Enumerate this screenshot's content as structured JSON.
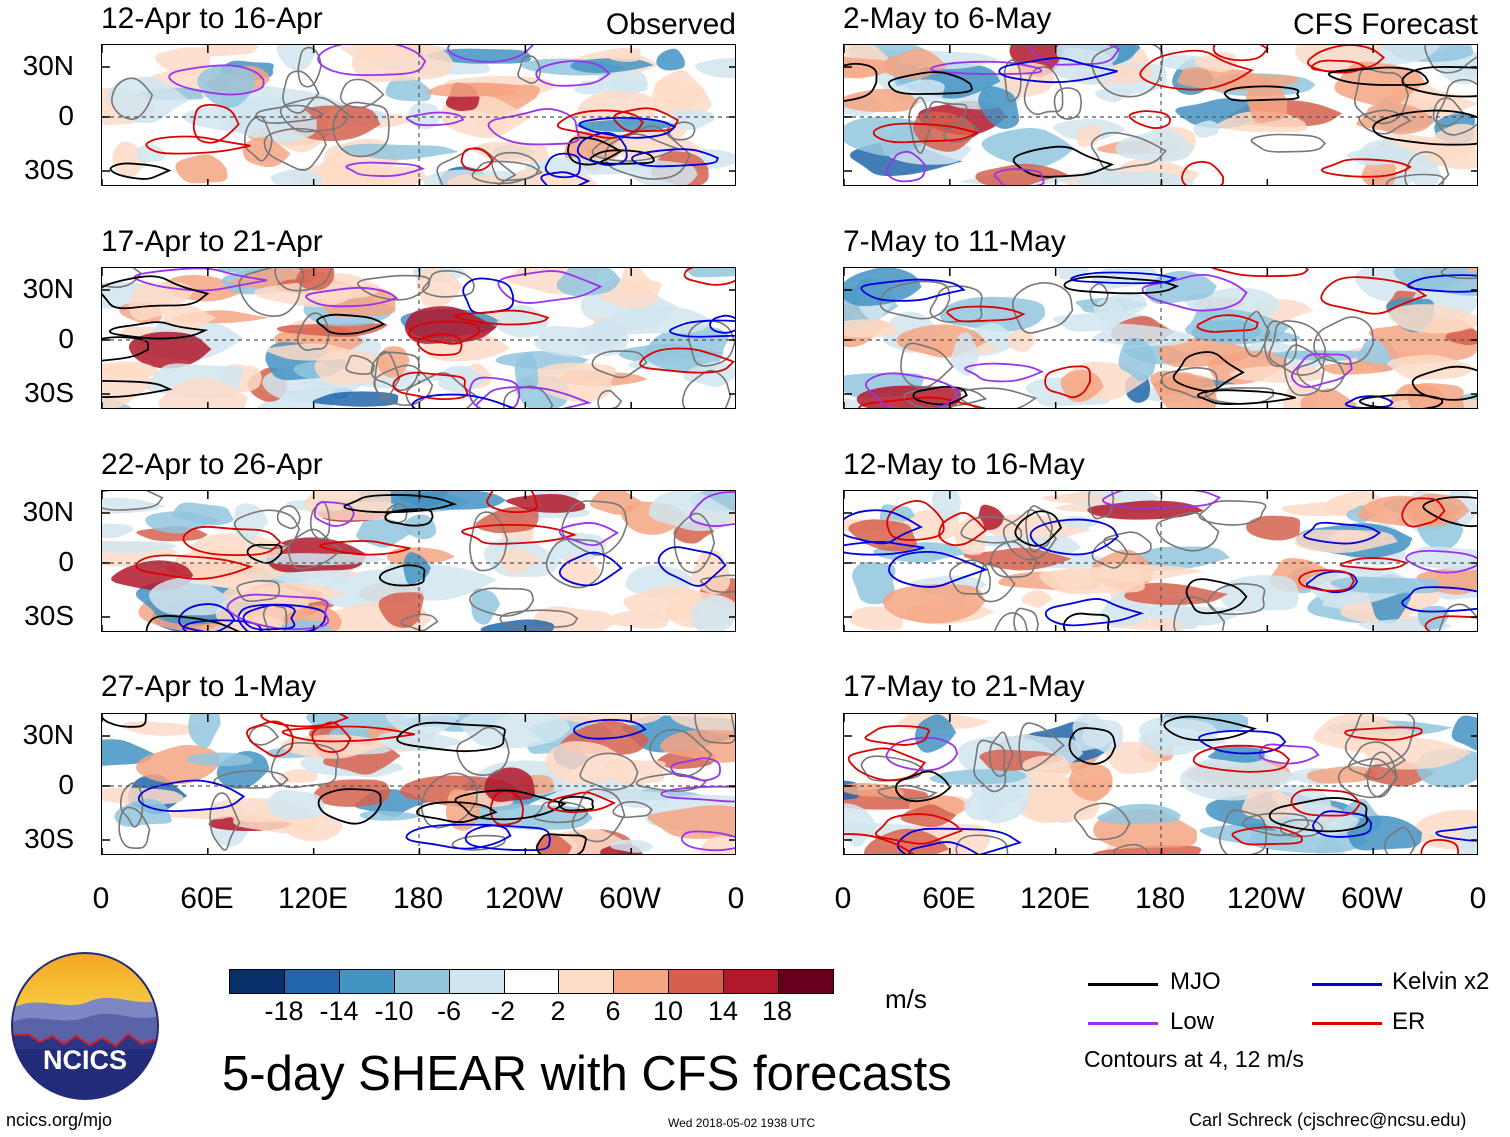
{
  "panels_left": [
    {
      "title": "12-Apr to 16-Apr",
      "tag": "Observed"
    },
    {
      "title": "17-Apr to 21-Apr",
      "tag": ""
    },
    {
      "title": "22-Apr to 26-Apr",
      "tag": ""
    },
    {
      "title": "27-Apr to 1-May",
      "tag": ""
    }
  ],
  "panels_right": [
    {
      "title": "2-May to 6-May",
      "tag": "CFS Forecast"
    },
    {
      "title": "7-May to 11-May",
      "tag": ""
    },
    {
      "title": "12-May to 16-May",
      "tag": ""
    },
    {
      "title": "17-May to 21-May",
      "tag": ""
    }
  ],
  "lat_labels": [
    "30N",
    "0",
    "30S"
  ],
  "lon_labels": [
    "0",
    "60E",
    "120E",
    "180",
    "120W",
    "60W",
    "0"
  ],
  "colorbar": {
    "colors": [
      "#08306b",
      "#2166ac",
      "#4393c3",
      "#92c5de",
      "#d1e5f0",
      "#ffffff",
      "#fddbc7",
      "#f4a582",
      "#d6604d",
      "#b2182b",
      "#67001f"
    ],
    "labels": [
      "-18",
      "-14",
      "-10",
      "-6",
      "-2",
      "2",
      "6",
      "10",
      "14",
      "18"
    ],
    "units": "m/s"
  },
  "title": "5-day SHEAR with CFS forecasts",
  "legend": [
    {
      "label": "MJO",
      "color": "#000000"
    },
    {
      "label": "Kelvin x2",
      "color": "#0000dd"
    },
    {
      "label": "Low",
      "color": "#9933ee"
    },
    {
      "label": "ER",
      "color": "#dd0000"
    }
  ],
  "contour_note": "Contours at 4, 12 m/s",
  "logo_text": "NCICS",
  "footer": {
    "url": "ncics.org/mjo",
    "timestamp": "Wed 2018-05-02 1938 UTC",
    "credit": "Carl Schreck (cjschrec@ncsu.edu)"
  }
}
